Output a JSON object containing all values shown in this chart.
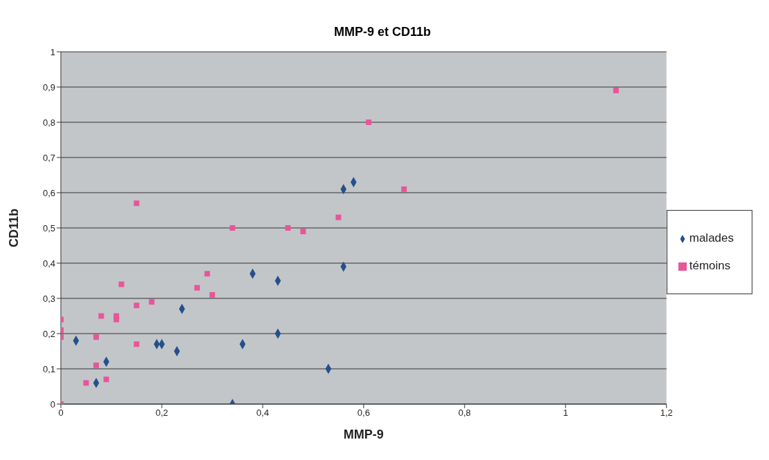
{
  "chart_data": {
    "type": "scatter",
    "title": "MMP-9 et CD11b",
    "xlabel": "MMP-9",
    "ylabel": "CD11b",
    "xlim": [
      0,
      1.2
    ],
    "ylim": [
      0,
      1
    ],
    "xticks": [
      0,
      {
        "value": 0.2,
        "label": "0,2"
      },
      {
        "value": 0.4,
        "label": "0,4"
      },
      {
        "value": 0.6,
        "label": "0,6"
      },
      {
        "value": 0.8,
        "label": "0,8"
      },
      1,
      {
        "value": 1.2,
        "label": "1,2"
      }
    ],
    "yticks": [
      0,
      {
        "value": 0.1,
        "label": "0,1"
      },
      {
        "value": 0.2,
        "label": "0,2"
      },
      {
        "value": 0.3,
        "label": "0,3"
      },
      {
        "value": 0.4,
        "label": "0,4"
      },
      {
        "value": 0.5,
        "label": "0,5"
      },
      {
        "value": 0.6,
        "label": "0,6"
      },
      {
        "value": 0.7,
        "label": "0,7"
      },
      {
        "value": 0.8,
        "label": "0,8"
      },
      {
        "value": 0.9,
        "label": "0,9"
      },
      1
    ],
    "grid": "y",
    "legend": "right",
    "series": [
      {
        "name": "malades",
        "color": "#24508c",
        "marker": "diamond",
        "x": [
          0.03,
          0.07,
          0.09,
          0.19,
          0.2,
          0.23,
          0.24,
          0.34,
          0.36,
          0.38,
          0.43,
          0.43,
          0.53,
          0.56,
          0.56,
          0.58
        ],
        "values": [
          0.18,
          0.06,
          0.12,
          0.17,
          0.17,
          0.15,
          0.27,
          0,
          0.17,
          0.37,
          0.35,
          0.2,
          0.1,
          0.39,
          0.61,
          0.63
        ]
      },
      {
        "name": "témoins",
        "color": "#e8559a",
        "marker": "square",
        "x": [
          0,
          0,
          0,
          0,
          0.05,
          0.07,
          0.07,
          0.09,
          0.08,
          0.11,
          0.11,
          0.12,
          0.15,
          0.15,
          0.15,
          0.18,
          0.27,
          0.29,
          0.3,
          0.34,
          0.45,
          0.48,
          0.55,
          0.61,
          0.68,
          1.1
        ],
        "values": [
          0,
          0.24,
          0.21,
          0.19,
          0.06,
          0.11,
          0.19,
          0.07,
          0.25,
          0.25,
          0.24,
          0.34,
          0.57,
          0.17,
          0.28,
          0.29,
          0.33,
          0.37,
          0.31,
          0.5,
          0.5,
          0.49,
          0.53,
          0.8,
          0.61,
          0.89
        ]
      }
    ]
  }
}
